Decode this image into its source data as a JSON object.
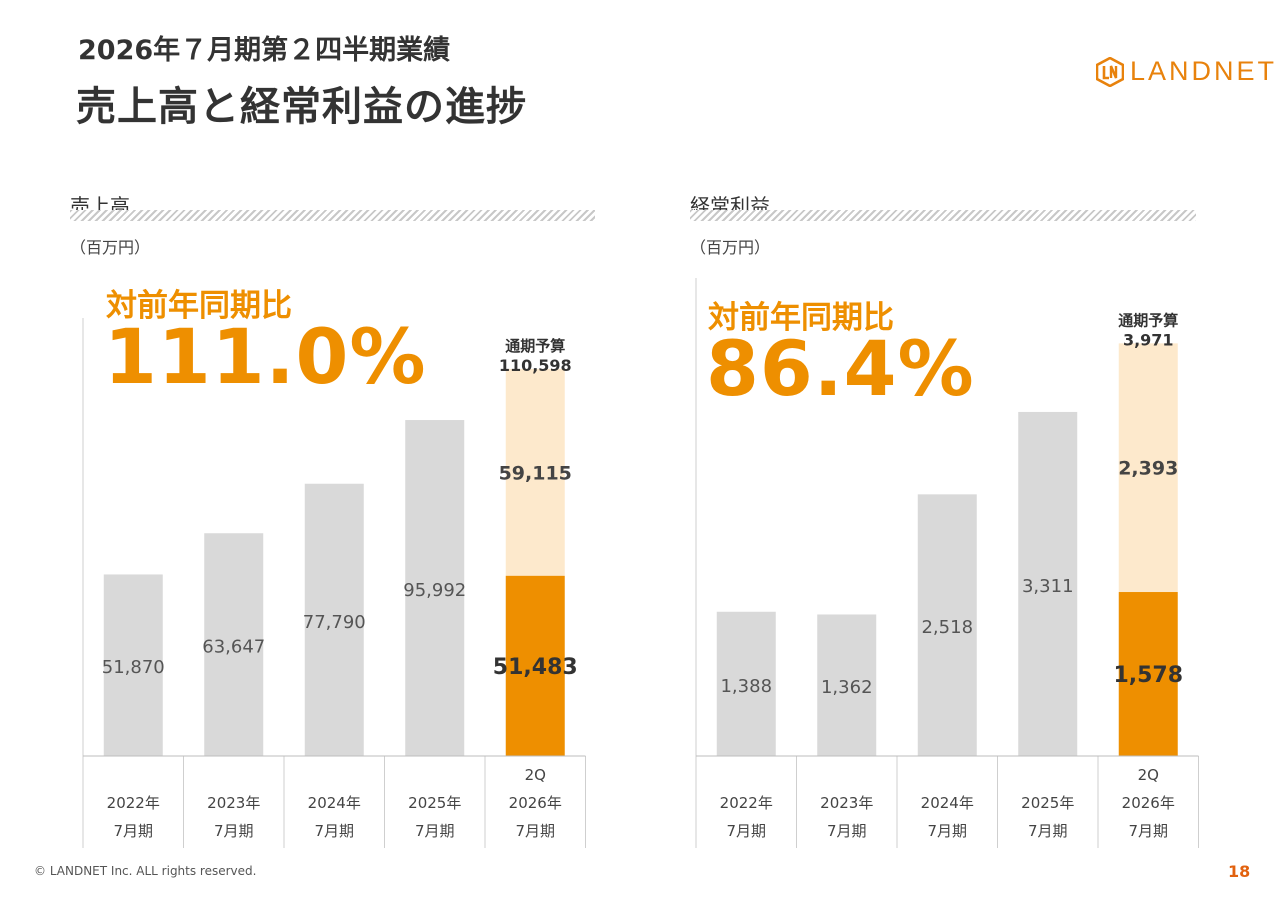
{
  "header": {
    "subtitle": "2026年７月期第２四半期業績",
    "title": "売上高と経常利益の進捗"
  },
  "logo": {
    "text": "LANDNET",
    "color": "#e8820c"
  },
  "colors": {
    "bar_past": "#d9d9d9",
    "bar_current": "#ee8f00",
    "bar_remaining": "#fde9cc",
    "ratio": "#ee8f00"
  },
  "chart_data": [
    {
      "type": "bar",
      "title": "売上高",
      "unit": "（百万円）",
      "yoy_label": "対前年同期比",
      "yoy_value": "111.0%",
      "categories": [
        {
          "top": "",
          "line1": "2022年",
          "line2": "7月期"
        },
        {
          "top": "",
          "line1": "2023年",
          "line2": "7月期"
        },
        {
          "top": "",
          "line1": "2024年",
          "line2": "7月期"
        },
        {
          "top": "",
          "line1": "2025年",
          "line2": "7月期"
        },
        {
          "top": "2Q",
          "line1": "2026年",
          "line2": "7月期"
        }
      ],
      "values": [
        51870,
        63647,
        77790,
        95992,
        51483
      ],
      "value_labels": [
        "51,870",
        "63,647",
        "77,790",
        "95,992",
        "51,483"
      ],
      "forecast": {
        "label": "通期予算",
        "total": 110598,
        "total_label": "110,598",
        "remaining": 59115,
        "remaining_label": "59,115"
      },
      "ylim": [
        0,
        132000
      ]
    },
    {
      "type": "bar",
      "title": "経常利益",
      "unit": "（百万円）",
      "yoy_label": "対前年同期比",
      "yoy_value": "86.4%",
      "categories": [
        {
          "top": "",
          "line1": "2022年",
          "line2": "7月期"
        },
        {
          "top": "",
          "line1": "2023年",
          "line2": "7月期"
        },
        {
          "top": "",
          "line1": "2024年",
          "line2": "7月期"
        },
        {
          "top": "",
          "line1": "2025年",
          "line2": "7月期"
        },
        {
          "top": "2Q",
          "line1": "2026年",
          "line2": "7月期"
        }
      ],
      "values": [
        1388,
        1362,
        2518,
        3311,
        1578
      ],
      "value_labels": [
        "1,388",
        "1,362",
        "2,518",
        "3,311",
        "1,578"
      ],
      "forecast": {
        "label": "通期予算",
        "total": 3971,
        "total_label": "3,971",
        "remaining": 2393,
        "remaining_label": "2,393"
      },
      "ylim": [
        0,
        4600
      ]
    }
  ],
  "footer": {
    "copyright": "© LANDNET Inc. ALL rights reserved.",
    "page": "18"
  }
}
